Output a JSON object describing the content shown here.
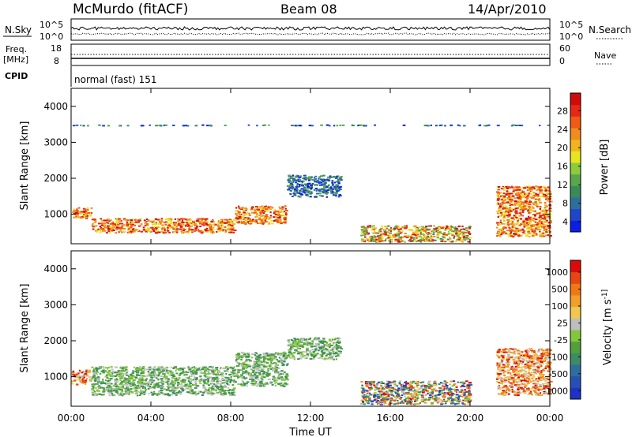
{
  "header": {
    "station": "McMurdo (fitACF)",
    "beam": "Beam 08",
    "date": "14/Apr/2010"
  },
  "top_panels": {
    "nsky_label": "N.Sky",
    "nsky_ticks": [
      "10^5",
      "10^0"
    ],
    "nsearch_label": "N.Search",
    "nsearch_ticks": [
      "10^5",
      "10^0"
    ],
    "freq_label": "Freq.",
    "freq_unit": "[MHz]",
    "freq_ticks": [
      "18",
      "8"
    ],
    "nave_label": "Nave",
    "nave_ticks": [
      "60",
      "0"
    ],
    "cpid_label": "CPID",
    "cpid_value": "normal (fast) 151"
  },
  "chart_data": [
    {
      "type": "heatmap",
      "name": "power-panel",
      "ylabel": "Slant Range [km]",
      "ylim": [
        180,
        4500
      ],
      "yticks": [
        "4000",
        "3000",
        "2000",
        "1000"
      ],
      "xlabel": "Time UT",
      "xticks": [
        "00:00",
        "04:00",
        "08:00",
        "12:00",
        "16:00",
        "20:00",
        "00:00"
      ],
      "colorbar": {
        "label": "Power [dB]",
        "ticks": [
          "28",
          "24",
          "20",
          "16",
          "12",
          "8",
          "4"
        ],
        "colors": [
          "#0a1ee6",
          "#1e46c8",
          "#2e6e9e",
          "#3a8a5a",
          "#5aa64a",
          "#8ccc3c",
          "#e6e61e",
          "#f0b41e",
          "#f08c1e",
          "#f05a14",
          "#e62814",
          "#d20a0a"
        ]
      },
      "echo_regions": [
        {
          "t": [
            0.0,
            1.0
          ],
          "r": [
            900,
            1200
          ],
          "level": "strong"
        },
        {
          "t": [
            1.0,
            8.2
          ],
          "r": [
            500,
            900
          ],
          "level": "strong"
        },
        {
          "t": [
            8.2,
            10.8
          ],
          "r": [
            750,
            1250
          ],
          "level": "strong"
        },
        {
          "t": [
            10.8,
            13.5
          ],
          "r": [
            1500,
            2100
          ],
          "level": "weak"
        },
        {
          "t": [
            14.5,
            20.0
          ],
          "r": [
            250,
            700
          ],
          "level": "moderate"
        },
        {
          "t": [
            21.3,
            24.0
          ],
          "r": [
            400,
            1800
          ],
          "level": "strong"
        },
        {
          "t": [
            0.0,
            24.0
          ],
          "r": [
            3480,
            3500
          ],
          "level": "weak"
        }
      ]
    },
    {
      "type": "heatmap",
      "name": "velocity-panel",
      "ylabel": "Slant Range [km]",
      "ylim": [
        180,
        4500
      ],
      "yticks": [
        "4000",
        "3000",
        "2000",
        "1000"
      ],
      "xlabel": "Time UT",
      "xticks": [
        "00:00",
        "04:00",
        "08:00",
        "12:00",
        "16:00",
        "20:00",
        "00:00"
      ],
      "colorbar": {
        "label": "Velocity [m s^-1]",
        "ticks": [
          "1000",
          "500",
          "100",
          "25",
          "-25",
          "-100",
          "-500",
          "-1000"
        ],
        "colors": [
          "#1e32c8",
          "#2850b4",
          "#2e6e9e",
          "#3c8c64",
          "#50a03c",
          "#82c83c",
          "#bebebe",
          "#f0c850",
          "#f0a028",
          "#f07814",
          "#e64614",
          "#dc0a0a"
        ]
      },
      "echo_regions": [
        {
          "t": [
            0.0,
            1.0
          ],
          "r": [
            800,
            1200
          ],
          "level": "away"
        },
        {
          "t": [
            1.0,
            8.2
          ],
          "r": [
            500,
            1300
          ],
          "level": "toward"
        },
        {
          "t": [
            8.2,
            10.8
          ],
          "r": [
            750,
            1700
          ],
          "level": "toward"
        },
        {
          "t": [
            10.8,
            13.5
          ],
          "r": [
            1500,
            2100
          ],
          "level": "toward"
        },
        {
          "t": [
            14.5,
            20.0
          ],
          "r": [
            250,
            900
          ],
          "level": "mixed"
        },
        {
          "t": [
            21.3,
            24.0
          ],
          "r": [
            500,
            1800
          ],
          "level": "away"
        }
      ]
    }
  ]
}
